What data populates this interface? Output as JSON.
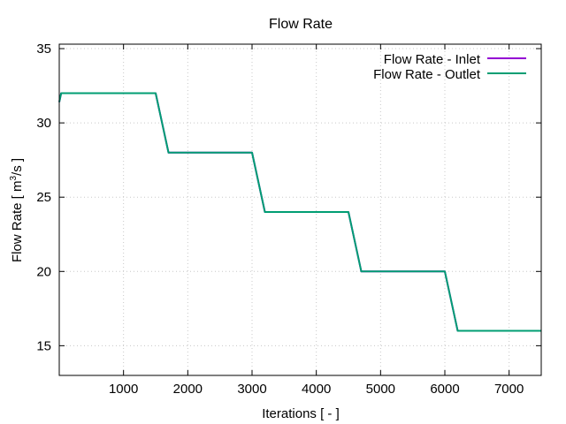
{
  "chart_data": {
    "type": "line",
    "title": "Flow Rate",
    "xlabel": "Iterations [ - ]",
    "ylabel_main": "Flow Rate [ m",
    "ylabel_sup": "3",
    "ylabel_tail": "/s ]",
    "xlim": [
      0,
      7500
    ],
    "ylim": [
      13,
      35.3
    ],
    "xticks": [
      1000,
      2000,
      3000,
      4000,
      5000,
      6000,
      7000
    ],
    "yticks": [
      15,
      20,
      25,
      30,
      35
    ],
    "grid": true,
    "legend_position": "top-right",
    "series": [
      {
        "name": "Flow Rate - Inlet",
        "color": "#9400d3",
        "x": [
          0,
          30,
          60,
          1500,
          1700,
          3000,
          3200,
          4500,
          4700,
          6000,
          6200,
          7500
        ],
        "y": [
          31.4,
          32.0,
          32.0,
          32.0,
          28.0,
          28.0,
          24.0,
          24.0,
          20.0,
          20.0,
          16.0,
          16.0
        ]
      },
      {
        "name": "Flow Rate - Outlet",
        "color": "#009e73",
        "x": [
          0,
          30,
          60,
          1500,
          1700,
          3000,
          3200,
          4500,
          4700,
          6000,
          6200,
          7500
        ],
        "y": [
          31.4,
          32.0,
          32.0,
          32.0,
          28.0,
          28.0,
          24.0,
          24.0,
          20.0,
          20.0,
          16.0,
          16.0
        ]
      }
    ]
  }
}
